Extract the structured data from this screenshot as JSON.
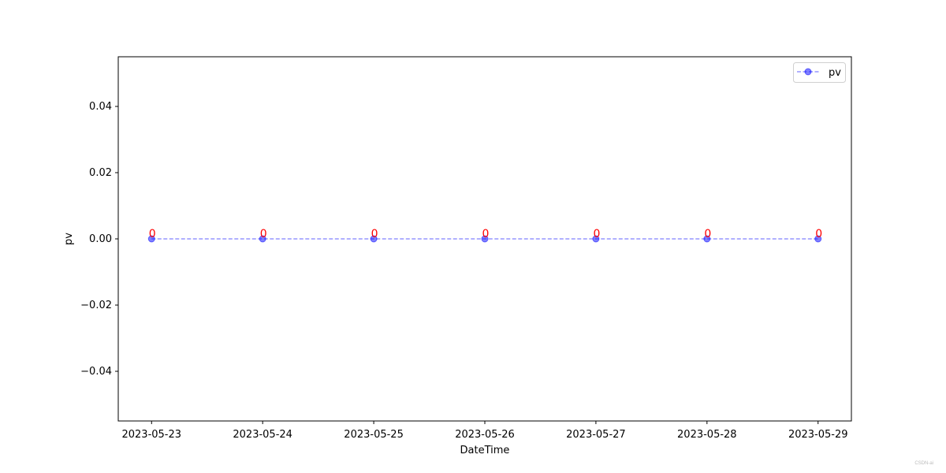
{
  "chart_data": {
    "type": "line",
    "title": "",
    "xlabel": "DateTime",
    "ylabel": "pv",
    "x": [
      "2023-05-23",
      "2023-05-24",
      "2023-05-25",
      "2023-05-26",
      "2023-05-27",
      "2023-05-28",
      "2023-05-29"
    ],
    "series": [
      {
        "name": "pv",
        "values": [
          0,
          0,
          0,
          0,
          0,
          0,
          0
        ],
        "color": "#0000ff",
        "line_color": "#8080ff",
        "line_style": "dashed",
        "marker": "circle",
        "marker_alpha": 0.5
      }
    ],
    "data_labels": [
      "0",
      "0",
      "0",
      "0",
      "0",
      "0",
      "0"
    ],
    "data_label_color": "#ff0000",
    "ylim": [
      -0.055,
      0.055
    ],
    "yticks": [
      -0.04,
      -0.02,
      0.0,
      0.02,
      0.04
    ],
    "ytick_labels": [
      "−0.04",
      "−0.02",
      "0.00",
      "0.02",
      "0.04"
    ],
    "grid": false,
    "legend": {
      "placement": "top-right",
      "entries": [
        "pv"
      ]
    }
  },
  "watermark": "CSDN-ai"
}
